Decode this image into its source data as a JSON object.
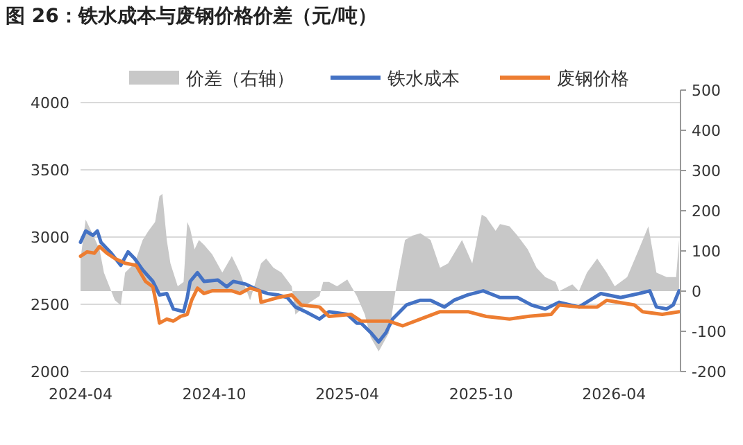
{
  "chart_data": {
    "type": "line",
    "title": "图 26：铁水成本与废钢价格价差（元/吨）",
    "xlim": [
      "2024-04-01",
      "2026-07-01"
    ],
    "xticks": [
      "2024-04",
      "2024-10",
      "2025-04",
      "2025-10",
      "2026-04"
    ],
    "ylim": [
      2000,
      4000
    ],
    "yticks": [
      2000,
      2500,
      3000,
      3500,
      4000
    ],
    "y2lim": [
      -200,
      500
    ],
    "y2ticks": [
      -200,
      -100,
      0,
      100,
      200,
      300,
      400,
      500
    ],
    "grid": "y",
    "legend": "top",
    "series": [
      {
        "name": "价差（右轴）",
        "type": "area",
        "axis": "y2",
        "color": "#c8c8c8",
        "x": [
          "2024-04-01",
          "2024-04-08",
          "2024-04-18",
          "2024-04-27",
          "2024-05-03",
          "2024-05-13",
          "2024-05-18",
          "2024-05-26",
          "2024-06-01",
          "2024-06-14",
          "2024-06-25",
          "2024-07-03",
          "2024-07-12",
          "2024-07-18",
          "2024-07-22",
          "2024-07-28",
          "2024-08-02",
          "2024-08-12",
          "2024-08-20",
          "2024-08-25",
          "2024-08-29",
          "2024-09-04",
          "2024-09-10",
          "2024-09-17",
          "2024-09-28",
          "2024-10-12",
          "2024-10-25",
          "2024-11-05",
          "2024-11-19",
          "2024-12-04",
          "2024-12-11",
          "2024-12-21",
          "2025-01-01",
          "2025-01-15",
          "2025-01-20",
          "2025-02-03",
          "2025-02-22",
          "2025-02-27",
          "2025-03-07",
          "2025-03-18",
          "2025-04-01",
          "2025-04-14",
          "2025-04-25",
          "2025-05-03",
          "2025-05-14",
          "2025-05-28",
          "2025-06-06",
          "2025-06-19",
          "2025-06-29",
          "2025-07-10",
          "2025-07-24",
          "2025-08-06",
          "2025-08-17",
          "2025-09-05",
          "2025-09-19",
          "2025-10-02",
          "2025-10-08",
          "2025-10-21",
          "2025-10-27",
          "2025-11-09",
          "2025-11-20",
          "2025-12-04",
          "2025-12-16",
          "2025-12-28",
          "2026-01-11",
          "2026-01-16",
          "2026-02-03",
          "2026-02-12",
          "2026-02-23",
          "2026-03-09",
          "2026-03-22",
          "2026-04-02",
          "2026-04-19",
          "2026-05-05",
          "2026-05-18",
          "2026-05-29",
          "2026-06-12",
          "2026-06-25",
          "2026-06-29"
        ],
        "values": [
          80,
          178,
          140,
          104,
          46,
          0,
          -23,
          -35,
          46,
          69,
          127,
          150,
          172,
          236,
          242,
          127,
          69,
          12,
          23,
          172,
          155,
          104,
          127,
          115,
          92,
          46,
          87,
          46,
          -23,
          69,
          81,
          58,
          46,
          12,
          -58,
          -35,
          -12,
          23,
          23,
          12,
          29,
          -12,
          -58,
          -115,
          -150,
          -104,
          0,
          127,
          138,
          144,
          127,
          58,
          69,
          127,
          69,
          190,
          184,
          150,
          167,
          161,
          138,
          104,
          58,
          35,
          23,
          0,
          17,
          0,
          46,
          81,
          46,
          12,
          35,
          104,
          161,
          46,
          35,
          35,
          127
        ]
      },
      {
        "name": "铁水成本",
        "color": "#4472c4",
        "x": [
          "2024-04-01",
          "2024-04-08",
          "2024-04-18",
          "2024-04-24",
          "2024-04-29",
          "2024-05-13",
          "2024-05-26",
          "2024-06-05",
          "2024-06-14",
          "2024-06-25",
          "2024-07-09",
          "2024-07-18",
          "2024-07-28",
          "2024-08-06",
          "2024-08-20",
          "2024-08-25",
          "2024-08-29",
          "2024-09-08",
          "2024-09-17",
          "2024-10-06",
          "2024-10-18",
          "2024-10-27",
          "2024-11-13",
          "2024-12-02",
          "2024-12-13",
          "2024-12-27",
          "2025-01-09",
          "2025-01-20",
          "2025-02-03",
          "2025-02-22",
          "2025-03-07",
          "2025-04-01",
          "2025-04-14",
          "2025-04-20",
          "2025-05-03",
          "2025-05-14",
          "2025-05-24",
          "2025-06-02",
          "2025-06-21",
          "2025-07-10",
          "2025-07-24",
          "2025-08-12",
          "2025-08-25",
          "2025-09-13",
          "2025-10-04",
          "2025-10-27",
          "2025-11-20",
          "2025-12-09",
          "2025-12-28",
          "2026-01-16",
          "2026-02-12",
          "2026-02-27",
          "2026-03-14",
          "2026-04-10",
          "2026-05-05",
          "2026-05-20",
          "2026-05-29",
          "2026-06-12",
          "2026-06-21",
          "2026-06-29"
        ],
        "values": [
          2962,
          3045,
          3013,
          3045,
          2960,
          2880,
          2790,
          2890,
          2840,
          2755,
          2670,
          2570,
          2580,
          2465,
          2445,
          2550,
          2670,
          2735,
          2670,
          2680,
          2630,
          2670,
          2650,
          2600,
          2580,
          2570,
          2550,
          2480,
          2445,
          2390,
          2445,
          2425,
          2360,
          2360,
          2290,
          2220,
          2290,
          2390,
          2495,
          2530,
          2530,
          2480,
          2530,
          2570,
          2600,
          2550,
          2550,
          2495,
          2465,
          2515,
          2480,
          2530,
          2580,
          2550,
          2580,
          2600,
          2480,
          2465,
          2495,
          2600
        ]
      },
      {
        "name": "废钢价格",
        "color": "#ed7d31",
        "x": [
          "2024-04-01",
          "2024-04-10",
          "2024-04-20",
          "2024-04-27",
          "2024-05-07",
          "2024-05-18",
          "2024-06-01",
          "2024-06-16",
          "2024-06-29",
          "2024-07-09",
          "2024-07-14",
          "2024-07-18",
          "2024-07-28",
          "2024-08-06",
          "2024-08-16",
          "2024-08-25",
          "2024-08-31",
          "2024-09-08",
          "2024-09-17",
          "2024-09-28",
          "2024-10-25",
          "2024-11-05",
          "2024-11-19",
          "2024-12-02",
          "2024-12-04",
          "2024-12-27",
          "2025-01-15",
          "2025-01-28",
          "2025-02-22",
          "2025-03-07",
          "2025-04-06",
          "2025-04-20",
          "2025-05-09",
          "2025-05-28",
          "2025-06-16",
          "2025-07-10",
          "2025-08-06",
          "2025-09-13",
          "2025-10-08",
          "2025-11-09",
          "2025-12-04",
          "2026-01-05",
          "2026-01-16",
          "2026-02-12",
          "2026-03-09",
          "2026-03-22",
          "2026-04-29",
          "2026-05-10",
          "2026-06-06",
          "2026-06-29"
        ],
        "values": [
          2858,
          2890,
          2880,
          2930,
          2880,
          2840,
          2805,
          2790,
          2670,
          2630,
          2495,
          2360,
          2390,
          2375,
          2410,
          2425,
          2530,
          2620,
          2580,
          2600,
          2600,
          2580,
          2620,
          2600,
          2515,
          2550,
          2570,
          2495,
          2480,
          2410,
          2425,
          2375,
          2375,
          2375,
          2340,
          2390,
          2445,
          2445,
          2410,
          2390,
          2410,
          2425,
          2495,
          2480,
          2480,
          2530,
          2495,
          2445,
          2425,
          2445
        ]
      }
    ]
  }
}
